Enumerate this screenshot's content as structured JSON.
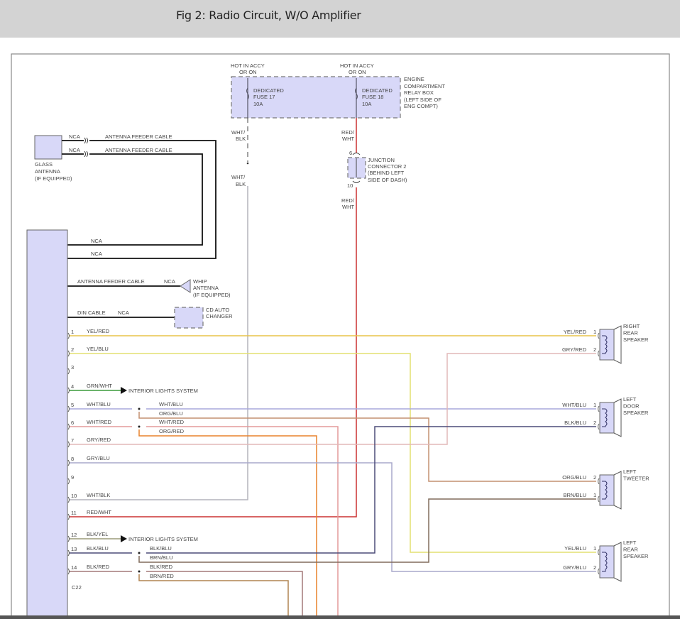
{
  "header": {
    "title": "Fig 2: Radio Circuit, W/O Amplifier"
  },
  "fuse_box": {
    "label": [
      "ENGINE",
      "COMPARTMENT",
      "RELAY BOX",
      "(LEFT SIDE OF",
      "ENG COMPT)"
    ],
    "fuses": [
      {
        "hot": [
          "HOT IN ACCY",
          "OR ON"
        ],
        "name": [
          "DEDICATED",
          "FUSE 17",
          "10A"
        ],
        "wire": [
          "WHT/",
          "BLK"
        ]
      },
      {
        "hot": [
          "HOT IN ACCY",
          "OR ON"
        ],
        "name": [
          "DEDICATED",
          "FUSE 18",
          "10A"
        ],
        "wire": [
          "RED/",
          "WHT"
        ]
      }
    ]
  },
  "junction": {
    "label": [
      "JUNCTION",
      "CONNECTOR 2",
      "(BEHIND LEFT",
      "SIDE OF DASH)"
    ],
    "pin_top": "6",
    "pin_bottom": "10"
  },
  "glass_antenna": {
    "label": [
      "GLASS",
      "ANTENNA",
      "(IF EQUIPPED)"
    ],
    "nca": "NCA",
    "cable": "ANTENNA FEEDER CABLE"
  },
  "nca": "NCA",
  "whip_antenna": {
    "label": [
      "WHIP",
      "ANTENNA",
      "(IF EQUIPPED)"
    ],
    "cable": "ANTENNA FEEDER CABLE"
  },
  "cd_changer": {
    "label": [
      "CD AUTO",
      "CHANGER"
    ],
    "cable": "DIN CABLE"
  },
  "connector": "C22",
  "pins": [
    {
      "n": "1",
      "wire": "YEL/RED"
    },
    {
      "n": "2",
      "wire": "YEL/BLU"
    },
    {
      "n": "3",
      "wire": ""
    },
    {
      "n": "4",
      "wire": "GRN/WHT",
      "dest": "INTERIOR LIGHTS SYSTEM"
    },
    {
      "n": "5",
      "wire": "WHT/BLU",
      "splice": [
        "WHT/BLU",
        "ORG/BLU"
      ]
    },
    {
      "n": "6",
      "wire": "WHT/RED",
      "splice": [
        "WHT/RED",
        "ORG/RED"
      ]
    },
    {
      "n": "7",
      "wire": "GRY/RED"
    },
    {
      "n": "8",
      "wire": "GRY/BLU"
    },
    {
      "n": "9",
      "wire": ""
    },
    {
      "n": "10",
      "wire": "WHT/BLK"
    },
    {
      "n": "11",
      "wire": "RED/WHT"
    },
    {
      "n": "12",
      "wire": "BLK/YEL",
      "dest": "INTERIOR LIGHTS SYSTEM"
    },
    {
      "n": "13",
      "wire": "BLK/BLU",
      "splice": [
        "BLK/BLU",
        "BRN/BLU"
      ]
    },
    {
      "n": "14",
      "wire": "BLK/RED",
      "splice": [
        "BLK/RED",
        "BRN/RED"
      ]
    }
  ],
  "speakers": [
    {
      "label": [
        "RIGHT",
        "REAR",
        "SPEAKER"
      ],
      "pins": [
        {
          "n": "1",
          "wire": "YEL/RED"
        },
        {
          "n": "2",
          "wire": "GRY/RED"
        }
      ]
    },
    {
      "label": [
        "LEFT",
        "DOOR",
        "SPEAKER"
      ],
      "pins": [
        {
          "n": "1",
          "wire": "WHT/BLU"
        },
        {
          "n": "2",
          "wire": "BLK/BLU"
        }
      ]
    },
    {
      "label": [
        "LEFT",
        "TWEETER"
      ],
      "pins": [
        {
          "n": "2",
          "wire": "ORG/BLU"
        },
        {
          "n": "1",
          "wire": "BRN/BLU"
        }
      ]
    },
    {
      "label": [
        "LEFT",
        "REAR",
        "SPEAKER"
      ],
      "pins": [
        {
          "n": "1",
          "wire": "YEL/BLU"
        },
        {
          "n": "2",
          "wire": "GRY/BLU"
        }
      ]
    }
  ],
  "wire_colors": {
    "YEL/RED": "#e8c448",
    "YEL/BLU": "#e4e070",
    "GRN/WHT": "#3c9c3c",
    "WHT/BLU": "#a8a8dc",
    "ORG/BLU": "#c49070",
    "WHT/RED": "#e49a9a",
    "ORG/RED": "#e8822c",
    "GRY/RED": "#e2b8b8",
    "GRY/BLU": "#a8a8cc",
    "WHT/BLK": "#b4b4bc",
    "RED/WHT": "#cc3030",
    "BLK/YEL": "#9a9a78",
    "BLK/BLU": "#4c4c78",
    "BRN/BLU": "#806c5c",
    "BLK/RED": "#a47878",
    "BRN/RED": "#b08450"
  }
}
